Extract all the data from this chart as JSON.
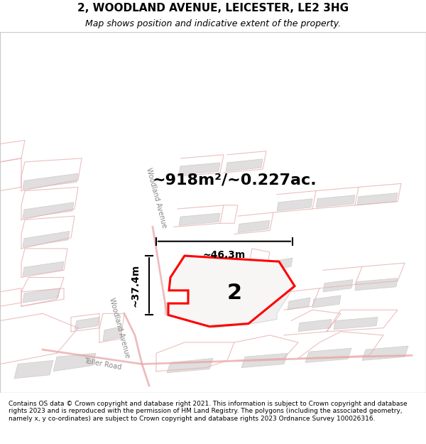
{
  "title_line1": "2, WOODLAND AVENUE, LEICESTER, LE2 3HG",
  "title_line2": "Map shows position and indicative extent of the property.",
  "footer_text": "Contains OS data © Crown copyright and database right 2021. This information is subject to Crown copyright and database rights 2023 and is reproduced with the permission of HM Land Registry. The polygons (including the associated geometry, namely x, y co-ordinates) are subject to Crown copyright and database rights 2023 Ordnance Survey 100026316.",
  "area_text": "~918m²/~0.227ac.",
  "label_number": "2",
  "dim_width": "~46.3m",
  "dim_height": "~37.4m",
  "bg_color": "#f0eeee",
  "map_bg": "#f5f2f2",
  "road_label1": "Toller Road",
  "road_label2": "Woodland Avenue",
  "road_label3": "Woodland Avenue"
}
